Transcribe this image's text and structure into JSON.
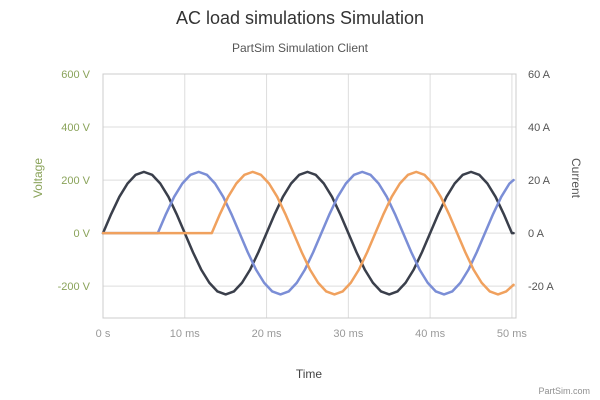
{
  "chart_data": {
    "type": "line",
    "title": "AC load simulations Simulation",
    "subtitle": "PartSim Simulation Client",
    "xlabel": "Time",
    "ylabel_left": "Voltage",
    "ylabel_right": "Current",
    "credit": "PartSim.com",
    "x_unit": "ms",
    "xlim": [
      0,
      50.5
    ],
    "ylim_left": [
      -320,
      600
    ],
    "ylim_right": [
      -32,
      60
    ],
    "x_ticks": [
      0,
      10,
      20,
      30,
      40,
      50
    ],
    "x_tick_labels": [
      "0 s",
      "10 ms",
      "20 ms",
      "30 ms",
      "40 ms",
      "50 ms"
    ],
    "y_left_ticks": [
      600,
      400,
      200,
      0,
      -200
    ],
    "y_left_tick_labels": [
      "600 V",
      "400 V",
      "200 V",
      "0 V",
      "-200 V"
    ],
    "y_right_ticks": [
      60,
      40,
      20,
      0,
      -20
    ],
    "y_right_tick_labels": [
      "60 A",
      "40 A",
      "20 A",
      "0 A",
      "-20 A"
    ],
    "grid": true,
    "colors": {
      "left_axis": "#8AA35A",
      "right_axis": "#555555",
      "grid": "#dddddd"
    },
    "series": [
      {
        "color": "#3a3f4b",
        "axis": "left",
        "x": [
          0,
          1,
          2,
          3,
          4,
          5,
          6,
          7,
          8,
          9,
          10,
          11,
          12,
          13,
          14,
          15,
          16,
          17,
          18,
          19,
          20,
          21,
          22,
          23,
          24,
          25,
          26,
          27,
          28,
          29,
          30,
          31,
          32,
          33,
          34,
          35,
          36,
          37,
          38,
          39,
          40,
          41,
          42,
          43,
          44,
          45,
          46,
          47,
          48,
          49,
          50,
          50.2
        ],
        "y": [
          0,
          72,
          137,
          187,
          220,
          231,
          220,
          187,
          137,
          72,
          0,
          -72,
          -137,
          -187,
          -220,
          -231,
          -220,
          -187,
          -137,
          -72,
          0,
          72,
          137,
          187,
          220,
          231,
          220,
          187,
          137,
          72,
          0,
          -72,
          -137,
          -187,
          -220,
          -231,
          -220,
          -187,
          -137,
          -72,
          0,
          72,
          137,
          187,
          220,
          231,
          220,
          187,
          137,
          72,
          0,
          0
        ]
      },
      {
        "color": "#7b8ed6",
        "axis": "left",
        "x": [
          0,
          6.7,
          7.7,
          8.7,
          9.7,
          10.7,
          11.7,
          12.7,
          13.7,
          14.7,
          15.7,
          16.7,
          17.7,
          18.7,
          19.7,
          20.7,
          21.7,
          22.7,
          23.7,
          24.7,
          25.7,
          26.7,
          27.7,
          28.7,
          29.7,
          30.7,
          31.7,
          32.7,
          33.7,
          34.7,
          35.7,
          36.7,
          37.7,
          38.7,
          39.7,
          40.7,
          41.7,
          42.7,
          43.7,
          44.7,
          45.7,
          46.7,
          47.7,
          48.7,
          49.7,
          50.2
        ],
        "y": [
          0,
          0,
          72,
          137,
          187,
          220,
          231,
          220,
          187,
          137,
          72,
          0,
          -72,
          -137,
          -187,
          -220,
          -231,
          -220,
          -187,
          -137,
          -72,
          0,
          72,
          137,
          187,
          220,
          231,
          220,
          187,
          137,
          72,
          0,
          -72,
          -137,
          -187,
          -220,
          -231,
          -220,
          -187,
          -137,
          -72,
          0,
          72,
          137,
          187,
          200
        ]
      },
      {
        "color": "#f0a15e",
        "axis": "left",
        "x": [
          0,
          13.3,
          14.3,
          15.3,
          16.3,
          17.3,
          18.3,
          19.3,
          20.3,
          21.3,
          22.3,
          23.3,
          24.3,
          25.3,
          26.3,
          27.3,
          28.3,
          29.3,
          30.3,
          31.3,
          32.3,
          33.3,
          34.3,
          35.3,
          36.3,
          37.3,
          38.3,
          39.3,
          40.3,
          41.3,
          42.3,
          43.3,
          44.3,
          45.3,
          46.3,
          47.3,
          48.3,
          49.3,
          50.2
        ],
        "y": [
          0,
          0,
          72,
          137,
          187,
          220,
          231,
          220,
          187,
          137,
          72,
          0,
          -72,
          -137,
          -187,
          -220,
          -231,
          -220,
          -187,
          -137,
          -72,
          0,
          72,
          137,
          187,
          220,
          231,
          220,
          187,
          137,
          72,
          0,
          -72,
          -137,
          -187,
          -220,
          -231,
          -220,
          -195
        ]
      }
    ]
  }
}
